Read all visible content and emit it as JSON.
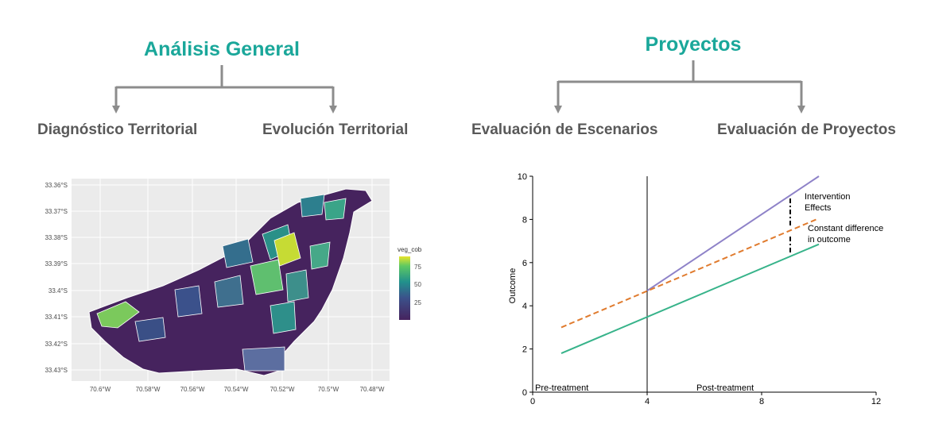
{
  "left": {
    "title": "Análisis General",
    "branches": [
      "Diagnóstico Territorial",
      "Evolución Territorial"
    ],
    "map": {
      "lat_ticks": [
        "33.36°S",
        "33.37°S",
        "33.38°S",
        "33.39°S",
        "33.4°S",
        "33.41°S",
        "33.42°S",
        "33.43°S"
      ],
      "lon_ticks": [
        "70.6°W",
        "70.58°W",
        "70.56°W",
        "70.54°W",
        "70.52°W",
        "70.5°W",
        "70.48°W"
      ],
      "legend": {
        "title": "veg_cob",
        "ticks": [
          "75",
          "50",
          "25"
        ]
      },
      "colors": {
        "low": "#46235e",
        "mid": "#2e8f8a",
        "high": "#e7e42a"
      }
    }
  },
  "right": {
    "title": "Proyectos",
    "branches": [
      "Evaluación de Escenarios",
      "Evaluación de Proyectos"
    ],
    "chart": {
      "annotations": {
        "intervention": [
          "Intervention",
          "Effects"
        ],
        "constant": [
          "Constant difference",
          "in outcome"
        ],
        "pre": "Pre-treatment",
        "post": "Post-treatment"
      }
    }
  },
  "colors": {
    "accent": "#1aa79a",
    "connector": "#8c8c8c"
  },
  "chart_data": {
    "type": "line",
    "xlabel": "",
    "ylabel": "Outcome",
    "xlim": [
      0,
      12
    ],
    "ylim": [
      0,
      10
    ],
    "x_ticks": [
      0,
      4,
      8,
      12
    ],
    "y_ticks": [
      0,
      2,
      4,
      6,
      8,
      10
    ],
    "vertical_line_x": 4,
    "series": [
      {
        "color": "#8e82c8",
        "dash": false,
        "x": [
          4,
          10
        ],
        "y": [
          4.7,
          10
        ]
      },
      {
        "color": "#e07b2e",
        "dash": true,
        "x": [
          1,
          10
        ],
        "y": [
          3.0,
          8.05
        ]
      },
      {
        "color": "#37b38a",
        "dash": false,
        "x": [
          1,
          10
        ],
        "y": [
          1.8,
          6.85
        ]
      }
    ]
  }
}
